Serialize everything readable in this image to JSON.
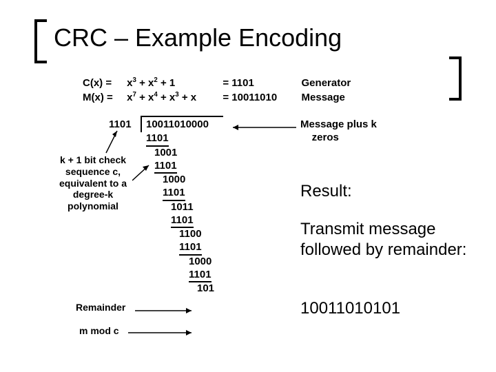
{
  "title": "CRC – Example Encoding",
  "defs": {
    "cx_lhs": "C(x) =",
    "cx_poly_html": "x<sup>3</sup> + x<sup>2</sup> + 1",
    "cx_bin": "= 1101",
    "cx_lbl": "Generator",
    "mx_lhs": "M(x) =",
    "mx_poly_html": "x<sup>7</sup> + x<sup>4</sup> + x<sup>3</sup> + x",
    "mx_bin": "= 10011010",
    "mx_lbl": "Message"
  },
  "division": {
    "divisor": "1101",
    "dividend": "10011010000",
    "steps": [
      {
        "indent": "step0",
        "line": "1101"
      },
      {
        "indent": "step1",
        "line": "1001"
      },
      {
        "indent": "step1",
        "line": "1101"
      },
      {
        "indent": "step2",
        "line": "1000"
      },
      {
        "indent": "step2",
        "line": "1101"
      },
      {
        "indent": "step3",
        "line": "1011"
      },
      {
        "indent": "step3",
        "line": "1101"
      },
      {
        "indent": "step4",
        "line": "1100"
      },
      {
        "indent": "step4",
        "line": "1101"
      },
      {
        "indent": "step5",
        "line": "1000"
      },
      {
        "indent": "step5",
        "line": "1101"
      }
    ],
    "remainder": "101"
  },
  "annotations": {
    "check_seq": "k + 1 bit check sequence c, equivalent to a degree-k polynomial",
    "remainder_lbl": "Remainder",
    "mmodc": "m mod c",
    "msg_plus_k": "Message plus k",
    "zeros": "zeros"
  },
  "result": {
    "heading": "Result:",
    "text": "Transmit message followed by remainder:",
    "code": "10011010101"
  },
  "colors": {
    "text": "#000000",
    "bg": "#ffffff"
  }
}
